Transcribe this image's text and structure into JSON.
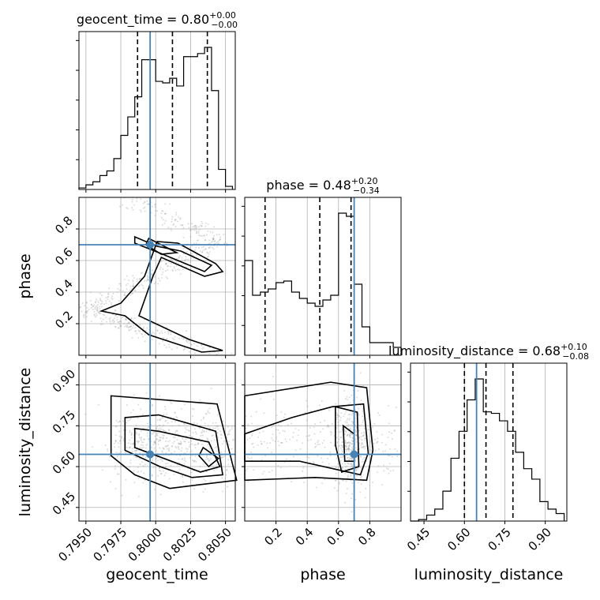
{
  "chart_data": {
    "type": "corner",
    "parameters": [
      "geocent_time",
      "phase",
      "luminosity_distance"
    ],
    "axes": {
      "geocent_time": {
        "range": [
          0.7945,
          0.8057
        ],
        "ticks": [
          0.795,
          0.7975,
          0.8,
          0.8025,
          0.805
        ],
        "tick_labels": [
          "0.7950",
          "0.7975",
          "0.8000",
          "0.8025",
          "0.8050"
        ],
        "label": "geocent_time"
      },
      "phase": {
        "range": [
          0.0,
          1.0
        ],
        "ticks": [
          0.2,
          0.4,
          0.6,
          0.8
        ],
        "tick_labels": [
          "0.2",
          "0.4",
          "0.6",
          "0.8"
        ],
        "label": "phase"
      },
      "luminosity_distance": {
        "range": [
          0.4,
          0.98
        ],
        "ticks": [
          0.45,
          0.6,
          0.75,
          0.9
        ],
        "tick_labels": [
          "0.45",
          "0.60",
          "0.75",
          "0.90"
        ],
        "label": "luminosity_distance"
      }
    },
    "titles": {
      "geocent_time": {
        "main": "geocent_time = 0.80",
        "plus": "+0.00",
        "minus": "−0.00"
      },
      "phase": {
        "main": "phase = 0.48",
        "plus": "+0.20",
        "minus": "−0.34"
      },
      "luminosity_distance": {
        "main": "luminosity_distance = 0.68",
        "plus": "+0.10",
        "minus": "−0.08"
      }
    },
    "truths": {
      "geocent_time": 0.7996,
      "phase": 0.7,
      "luminosity_distance": 0.645
    },
    "quantiles": {
      "geocent_time": [
        0.7987,
        0.8012,
        0.8037
      ],
      "phase": [
        0.13,
        0.48,
        0.68
      ],
      "luminosity_distance": [
        0.6,
        0.68,
        0.78
      ]
    },
    "histograms": {
      "geocent_time": {
        "edges": [
          0.7945,
          0.795,
          0.7955,
          0.796,
          0.7965,
          0.797,
          0.7975,
          0.798,
          0.7985,
          0.799,
          0.7995,
          0.8,
          0.8005,
          0.801,
          0.8015,
          0.802,
          0.8025,
          0.803,
          0.8035,
          0.804,
          0.8045,
          0.805,
          0.8055
        ],
        "counts": [
          0.01,
          0.03,
          0.05,
          0.09,
          0.12,
          0.2,
          0.35,
          0.47,
          0.6,
          0.84,
          0.84,
          0.7,
          0.69,
          0.72,
          0.67,
          0.86,
          0.86,
          0.88,
          0.92,
          0.64,
          0.13,
          0.02
        ]
      },
      "phase": {
        "edges": [
          0.0,
          0.05,
          0.1,
          0.15,
          0.2,
          0.25,
          0.3,
          0.35,
          0.4,
          0.45,
          0.5,
          0.55,
          0.6,
          0.65,
          0.7,
          0.75,
          0.8,
          0.85,
          0.9,
          0.95,
          1.0
        ],
        "counts": [
          0.6,
          0.38,
          0.4,
          0.42,
          0.46,
          0.47,
          0.4,
          0.36,
          0.33,
          0.31,
          0.35,
          0.38,
          0.9,
          0.88,
          0.45,
          0.18,
          0.08,
          0.08,
          0.08,
          0.05
        ]
      },
      "luminosity_distance": {
        "edges": [
          0.4,
          0.43,
          0.46,
          0.49,
          0.52,
          0.55,
          0.58,
          0.61,
          0.64,
          0.67,
          0.7,
          0.73,
          0.76,
          0.79,
          0.82,
          0.85,
          0.88,
          0.91,
          0.94,
          0.97
        ],
        "counts": [
          0.0,
          0.01,
          0.04,
          0.08,
          0.2,
          0.42,
          0.6,
          0.81,
          0.95,
          0.73,
          0.72,
          0.67,
          0.6,
          0.46,
          0.35,
          0.28,
          0.13,
          0.08,
          0.05
        ]
      }
    }
  }
}
